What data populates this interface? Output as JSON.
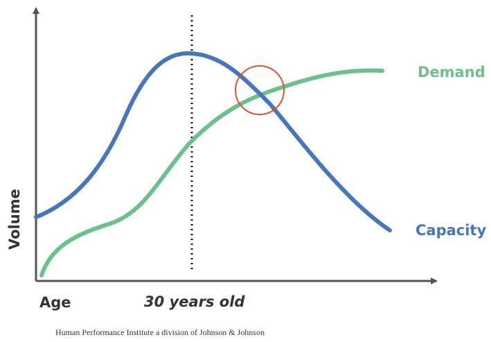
{
  "labels": {
    "demand": "Demand",
    "capacity": "Capacity",
    "y_axis": "Volume",
    "x_axis": "Age",
    "marker": "30 years old"
  },
  "source": "Human Performance Institute a division of Johnson & Johnson"
}
